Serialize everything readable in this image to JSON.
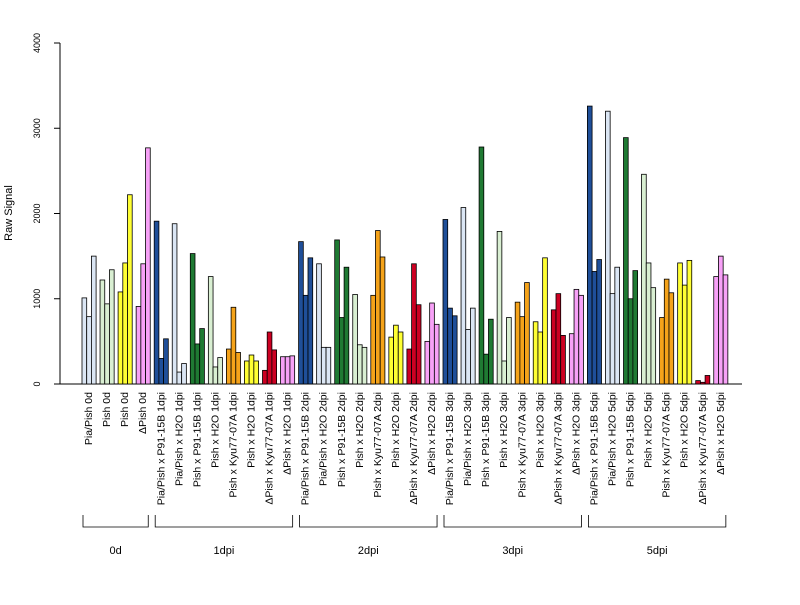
{
  "chart_data": {
    "type": "bar",
    "ylabel": "Raw Signal",
    "ylim": [
      0,
      4000
    ],
    "y_ticks": [
      0,
      1000,
      2000,
      3000,
      4000
    ],
    "grid": false,
    "legend": "none",
    "categories": [
      "Pia/Pish 0d",
      "Pish 0d",
      "Pish 0d",
      "ΔPish 0d",
      "Pia/Pish x P91-15B 1dpi",
      "Pia/Pish x H2O 1dpi",
      "Pish x P91-15B 1dpi",
      "Pish x H2O 1dpi",
      "Pish x Kyu77-07A 1dpi",
      "Pish x H2O 1dpi",
      "ΔPish x Kyu77-07A 1dpi",
      "ΔPish x H2O 1dpi",
      "Pia/Pish x P91-15B 2dpi",
      "Pia/Pish x H2O 2dpi",
      "Pish x P91-15B 2dpi",
      "Pish x H2O 2dpi",
      "Pish x Kyu77-07A 2dpi",
      "Pish x H2O 2dpi",
      "ΔPish x Kyu77-07A 2dpi",
      "ΔPish x H2O 2dpi",
      "Pia/Pish x P91-15B 3dpi",
      "Pia/Pish x H2O 3dpi",
      "Pish x P91-15B 3dpi",
      "Pish x H2O 3dpi",
      "Pish x Kyu77-07A 3dpi",
      "Pish x H2O 3dpi",
      "ΔPish x Kyu77-07A 3dpi",
      "ΔPish x H2O 3dpi",
      "Pia/Pish x P91-15B 5dpi",
      "Pia/Pish x H2O 5dpi",
      "Pish x P91-15B 5dpi",
      "Pish x H2O 5dpi",
      "Pish x Kyu77-07A 5dpi",
      "Pish x H2O 5dpi",
      "ΔPish x Kyu77-07A 5dpi",
      "ΔPish x H2O 5dpi"
    ],
    "colors": [
      "#dbe6f4",
      "#d9efd2",
      "#ffff33",
      "#f7a1f7",
      "#1f4f99",
      "#dbe6f4",
      "#1f7a33",
      "#d9efd2",
      "#f5a31a",
      "#ffff33",
      "#cc0022",
      "#f7a1f7",
      "#1f4f99",
      "#dbe6f4",
      "#1f7a33",
      "#d9efd2",
      "#f5a31a",
      "#ffff33",
      "#cc0022",
      "#f7a1f7",
      "#1f4f99",
      "#dbe6f4",
      "#1f7a33",
      "#d9efd2",
      "#f5a31a",
      "#ffff33",
      "#cc0022",
      "#f7a1f7",
      "#1f4f99",
      "#dbe6f4",
      "#1f7a33",
      "#d9efd2",
      "#f5a31a",
      "#ffff33",
      "#cc0022",
      "#f7a1f7"
    ],
    "values": [
      [
        1010,
        790,
        1500
      ],
      [
        1220,
        940,
        1340
      ],
      [
        1080,
        1420,
        2220
      ],
      [
        910,
        1410,
        2770
      ],
      [
        1910,
        300,
        530
      ],
      [
        1880,
        140,
        240
      ],
      [
        1530,
        470,
        650
      ],
      [
        1260,
        200,
        310
      ],
      [
        410,
        900,
        370
      ],
      [
        270,
        340,
        270
      ],
      [
        160,
        610,
        400
      ],
      [
        320,
        320,
        330
      ],
      [
        1670,
        1040,
        1480
      ],
      [
        1410,
        430,
        430
      ],
      [
        1690,
        780,
        1370
      ],
      [
        1050,
        460,
        430
      ],
      [
        1040,
        1800,
        1490
      ],
      [
        550,
        690,
        610
      ],
      [
        410,
        1410,
        930
      ],
      [
        500,
        950,
        700
      ],
      [
        1930,
        890,
        800
      ],
      [
        2070,
        640,
        890
      ],
      [
        2780,
        350,
        760
      ],
      [
        1790,
        270,
        780
      ],
      [
        960,
        790,
        1190
      ],
      [
        730,
        610,
        1480
      ],
      [
        870,
        1060,
        570
      ],
      [
        590,
        1110,
        1040
      ],
      [
        3260,
        1320,
        1460
      ],
      [
        3200,
        1060,
        1370
      ],
      [
        2890,
        1000,
        1330
      ],
      [
        2460,
        1420,
        1130
      ],
      [
        780,
        1230,
        1070
      ],
      [
        1420,
        1160,
        1450
      ],
      [
        40,
        20,
        100
      ],
      [
        1260,
        1500,
        1280
      ]
    ],
    "groups": [
      {
        "label": "0d",
        "count": 4
      },
      {
        "label": "1dpi",
        "count": 8
      },
      {
        "label": "2dpi",
        "count": 8
      },
      {
        "label": "3dpi",
        "count": 8
      },
      {
        "label": "5dpi",
        "count": 8
      }
    ]
  }
}
